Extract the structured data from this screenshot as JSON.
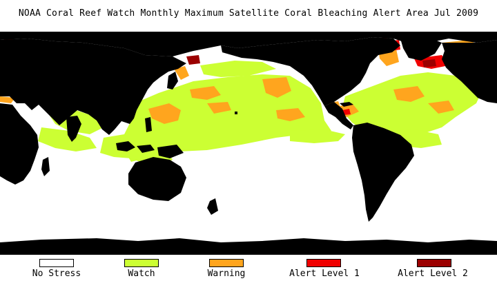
{
  "title": "NOAA Coral Reef Watch Monthly Maximum Satellite Coral Bleaching Alert Area   Jul 2009",
  "colors": {
    "land": "#000000",
    "no_stress": "#ffffff",
    "watch": "#ccff33",
    "warning": "#ffa51e",
    "alert1": "#f00000",
    "alert2": "#9b0000"
  },
  "legend": [
    {
      "label": "No Stress",
      "color": "#ffffff"
    },
    {
      "label": "Watch",
      "color": "#ccff33"
    },
    {
      "label": "Warning",
      "color": "#ffa51e"
    },
    {
      "label": "Alert Level 1",
      "color": "#f00000"
    },
    {
      "label": "Alert Level 2",
      "color": "#9b0000"
    }
  ]
}
